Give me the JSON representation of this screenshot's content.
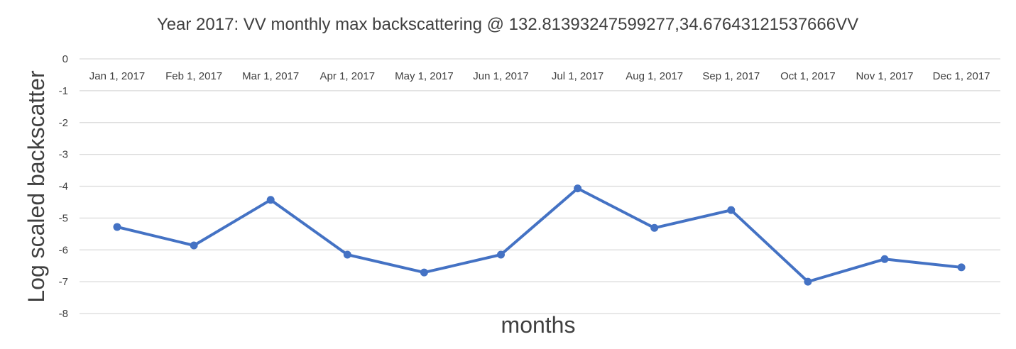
{
  "chart_data": {
    "type": "line",
    "title": "Year 2017: VV monthly max backscattering @ 132.81393247599277,34.67643121537666VV",
    "xlabel": "months",
    "ylabel": "Log scaled backscatter",
    "ylim": [
      -8,
      0
    ],
    "y_ticks": [
      "0",
      "-1",
      "-2",
      "-3",
      "-4",
      "-5",
      "-6",
      "-7",
      "-8"
    ],
    "x_axis_position": "top",
    "grid": true,
    "legend": "none",
    "line_color": "#4472c4",
    "categories": [
      "Jan 1, 2017",
      "Feb 1, 2017",
      "Mar 1, 2017",
      "Apr 1, 2017",
      "May 1, 2017",
      "Jun 1, 2017",
      "Jul 1, 2017",
      "Aug 1, 2017",
      "Sep 1, 2017",
      "Oct 1, 2017",
      "Nov 1, 2017",
      "Dec 1, 2017"
    ],
    "series": [
      {
        "values": [
          -5.28,
          -5.86,
          -4.43,
          -6.15,
          -6.71,
          -6.15,
          -4.07,
          -5.31,
          -4.75,
          -7.0,
          -6.29,
          -6.55
        ]
      }
    ]
  }
}
